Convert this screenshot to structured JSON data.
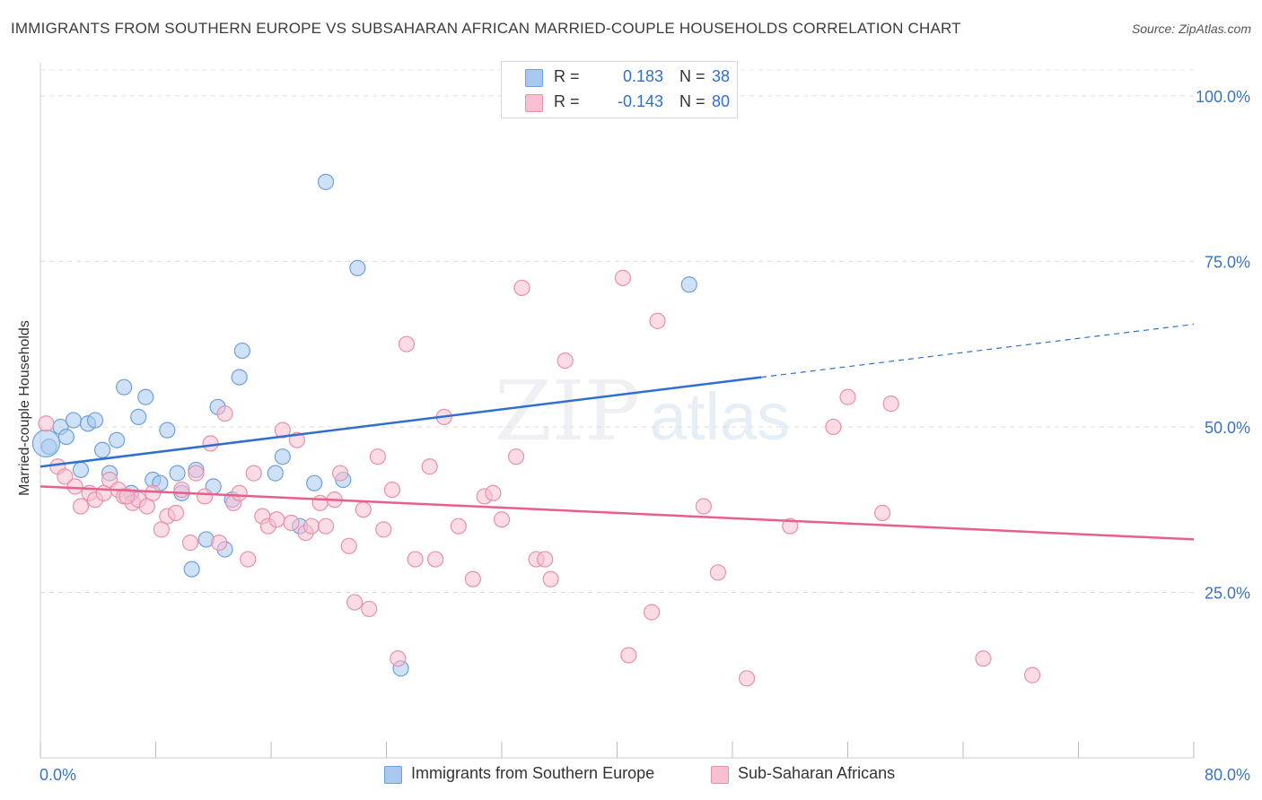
{
  "header": {
    "title": "IMMIGRANTS FROM SOUTHERN EUROPE VS SUBSAHARAN AFRICAN MARRIED-COUPLE HOUSEHOLDS CORRELATION CHART",
    "source": "Source: ZipAtlas.com"
  },
  "watermark": {
    "zip": "ZIP",
    "atlas": "atlas"
  },
  "stats": [
    {
      "r_label": "R =",
      "r_value": "0.183",
      "n_label": "N =",
      "n_value": "38",
      "color": "#a8c8f0",
      "border": "#6f9fdc"
    },
    {
      "r_label": "R =",
      "r_value": "-0.143",
      "n_label": "N =",
      "n_value": "80",
      "color": "#f8c0d0",
      "border": "#e890aa"
    }
  ],
  "legend": [
    {
      "label": "Immigrants from Southern Europe",
      "color": "#a8c8f0",
      "border": "#6f9fdc"
    },
    {
      "label": "Sub-Saharan Africans",
      "color": "#f8c0d0",
      "border": "#e890aa"
    }
  ],
  "chart_data": {
    "type": "scatter",
    "title": "IMMIGRANTS FROM SOUTHERN EUROPE VS SUBSAHARAN AFRICAN MARRIED-COUPLE HOUSEHOLDS CORRELATION CHART",
    "xlabel": "",
    "ylabel": "Married-couple Households",
    "xlim": [
      0,
      80
    ],
    "ylim": [
      0,
      105
    ],
    "x_tick_labels": [
      "0.0%",
      "80.0%"
    ],
    "y_ticks": [
      25,
      50,
      75,
      100
    ],
    "y_tick_labels": [
      "25.0%",
      "50.0%",
      "75.0%",
      "100.0%"
    ],
    "grid": true,
    "series": [
      {
        "name": "Immigrants from Southern Europe",
        "color": "#6f9fdc",
        "fill": "#a8c8f0",
        "trend": {
          "x0": 0,
          "y0": 44.0,
          "x1": 50,
          "y1": 57.5,
          "dash_to_x": 80,
          "dash_to_y": 65.5,
          "color": "#2f6fd1"
        },
        "points": [
          [
            0.6,
            47.0
          ],
          [
            1.4,
            50.0
          ],
          [
            1.8,
            48.5
          ],
          [
            2.3,
            51.0
          ],
          [
            2.8,
            43.5
          ],
          [
            3.3,
            50.5
          ],
          [
            3.8,
            51.0
          ],
          [
            4.3,
            46.5
          ],
          [
            4.8,
            43.0
          ],
          [
            5.3,
            48.0
          ],
          [
            5.8,
            56.0
          ],
          [
            6.3,
            40.0
          ],
          [
            6.8,
            51.5
          ],
          [
            7.3,
            54.5
          ],
          [
            7.8,
            42.0
          ],
          [
            8.3,
            41.5
          ],
          [
            8.8,
            49.5
          ],
          [
            9.5,
            43.0
          ],
          [
            9.8,
            40.0
          ],
          [
            10.5,
            28.5
          ],
          [
            10.8,
            43.5
          ],
          [
            11.5,
            33.0
          ],
          [
            12.0,
            41.0
          ],
          [
            12.3,
            53.0
          ],
          [
            12.8,
            31.5
          ],
          [
            13.3,
            39.0
          ],
          [
            13.8,
            57.5
          ],
          [
            14.0,
            61.5
          ],
          [
            16.3,
            43.0
          ],
          [
            16.8,
            45.5
          ],
          [
            18.0,
            35.0
          ],
          [
            19.0,
            41.5
          ],
          [
            19.8,
            87.0
          ],
          [
            21.0,
            42.0
          ],
          [
            22.0,
            74.0
          ],
          [
            25.0,
            13.5
          ],
          [
            45.0,
            71.5
          ],
          [
            0.4,
            47.5
          ]
        ]
      },
      {
        "name": "Sub-Saharan Africans",
        "color": "#e890aa",
        "fill": "#f8c0d0",
        "trend": {
          "x0": 0,
          "y0": 41.0,
          "x1": 80,
          "y1": 33.0,
          "color": "#e8608a"
        },
        "points": [
          [
            0.4,
            50.5
          ],
          [
            1.2,
            44.0
          ],
          [
            1.7,
            42.5
          ],
          [
            2.4,
            41.0
          ],
          [
            2.8,
            38.0
          ],
          [
            3.4,
            40.0
          ],
          [
            3.8,
            39.0
          ],
          [
            4.4,
            40.0
          ],
          [
            4.8,
            42.0
          ],
          [
            5.4,
            40.5
          ],
          [
            5.8,
            39.5
          ],
          [
            6.4,
            38.5
          ],
          [
            6.8,
            39.0
          ],
          [
            7.4,
            38.0
          ],
          [
            7.8,
            40.0
          ],
          [
            8.4,
            34.5
          ],
          [
            8.8,
            36.5
          ],
          [
            9.4,
            37.0
          ],
          [
            9.8,
            40.5
          ],
          [
            10.4,
            32.5
          ],
          [
            10.8,
            43.0
          ],
          [
            11.4,
            39.5
          ],
          [
            11.8,
            47.5
          ],
          [
            12.4,
            32.5
          ],
          [
            12.8,
            52.0
          ],
          [
            13.4,
            38.5
          ],
          [
            13.8,
            40.0
          ],
          [
            14.4,
            30.0
          ],
          [
            14.8,
            43.0
          ],
          [
            15.4,
            36.5
          ],
          [
            15.8,
            35.0
          ],
          [
            16.4,
            36.0
          ],
          [
            16.8,
            49.5
          ],
          [
            17.4,
            35.5
          ],
          [
            17.8,
            48.0
          ],
          [
            18.4,
            34.0
          ],
          [
            18.8,
            35.0
          ],
          [
            19.4,
            38.5
          ],
          [
            19.8,
            35.0
          ],
          [
            20.4,
            39.0
          ],
          [
            20.8,
            43.0
          ],
          [
            21.4,
            32.0
          ],
          [
            21.8,
            23.5
          ],
          [
            22.4,
            37.5
          ],
          [
            22.8,
            22.5
          ],
          [
            23.4,
            45.5
          ],
          [
            23.8,
            34.5
          ],
          [
            24.4,
            40.5
          ],
          [
            24.8,
            15.0
          ],
          [
            25.4,
            62.5
          ],
          [
            26.0,
            30.0
          ],
          [
            27.0,
            44.0
          ],
          [
            27.4,
            30.0
          ],
          [
            28.0,
            51.5
          ],
          [
            29.0,
            35.0
          ],
          [
            30.0,
            27.0
          ],
          [
            30.8,
            39.5
          ],
          [
            31.4,
            40.0
          ],
          [
            32.0,
            36.0
          ],
          [
            33.0,
            45.5
          ],
          [
            33.4,
            71.0
          ],
          [
            34.4,
            30.0
          ],
          [
            35.0,
            30.0
          ],
          [
            35.4,
            27.0
          ],
          [
            36.4,
            60.0
          ],
          [
            40.4,
            72.5
          ],
          [
            40.8,
            15.5
          ],
          [
            42.4,
            22.0
          ],
          [
            42.8,
            66.0
          ],
          [
            46.0,
            38.0
          ],
          [
            47.0,
            28.0
          ],
          [
            49.0,
            12.0
          ],
          [
            52.0,
            35.0
          ],
          [
            55.0,
            50.0
          ],
          [
            56.0,
            54.5
          ],
          [
            58.4,
            37.0
          ],
          [
            59.0,
            53.5
          ],
          [
            65.4,
            15.0
          ],
          [
            68.8,
            12.5
          ],
          [
            6.0,
            39.5
          ]
        ]
      }
    ]
  }
}
